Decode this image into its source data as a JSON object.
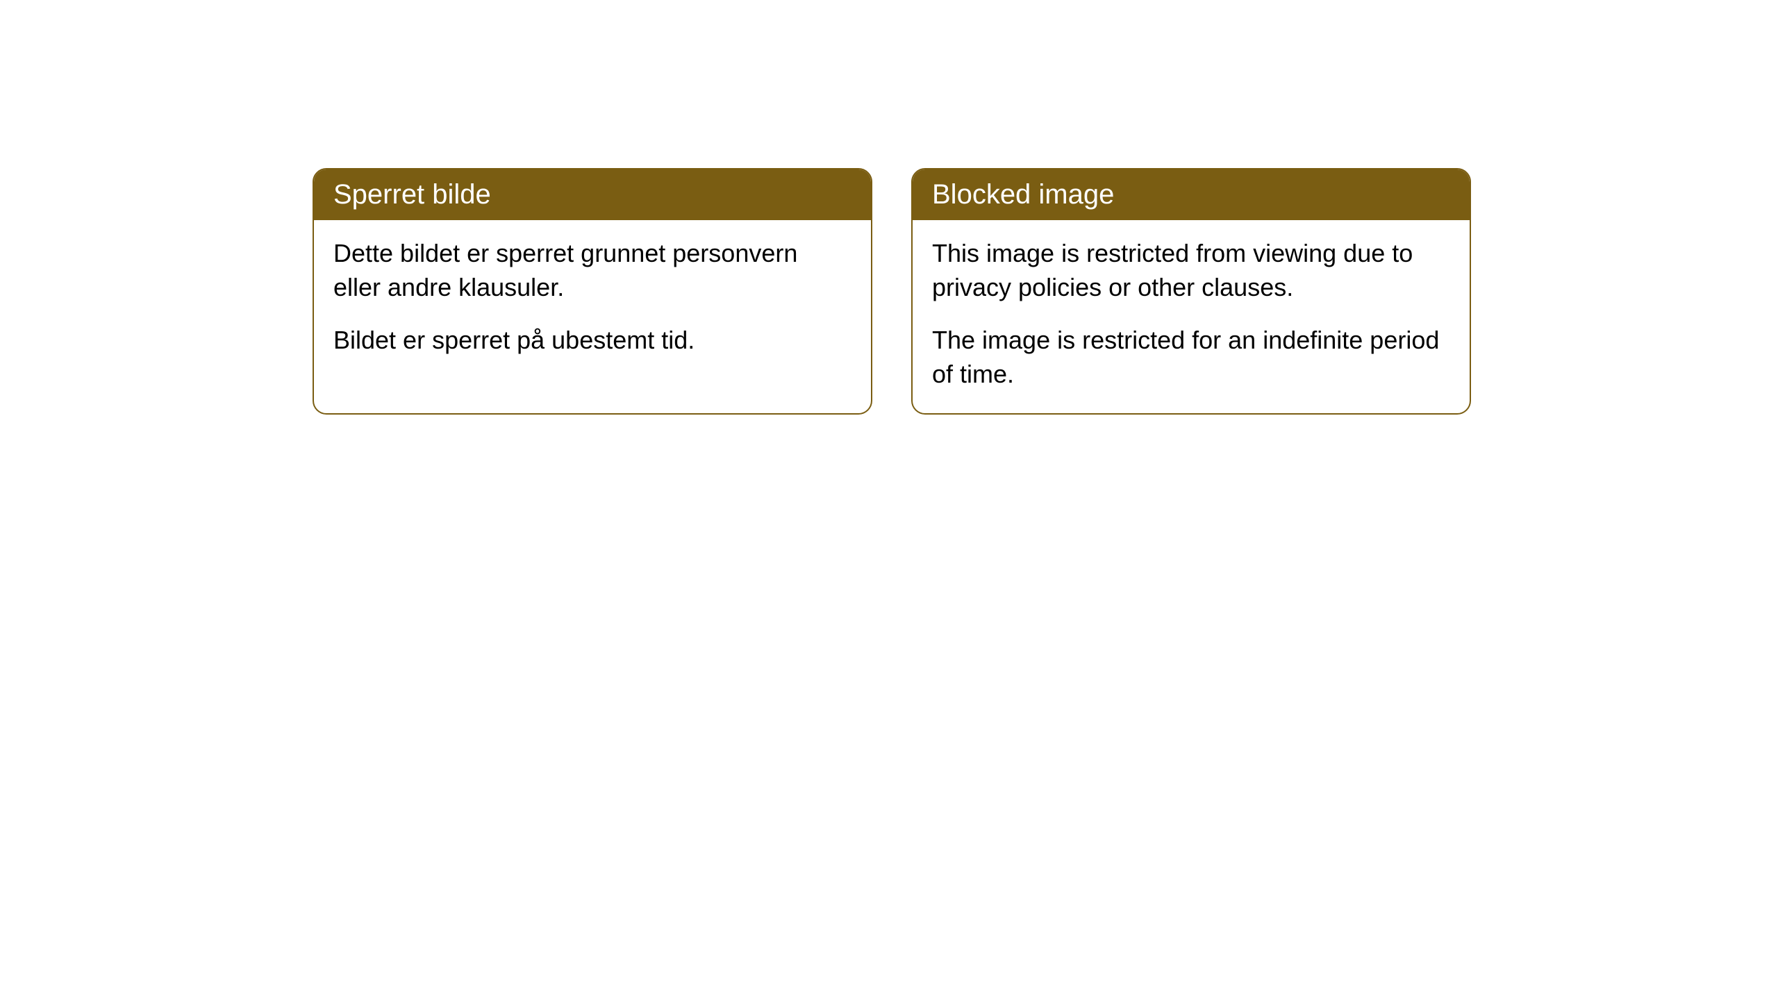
{
  "cards": [
    {
      "title": "Sperret bilde",
      "paragraph1": "Dette bildet er sperret grunnet personvern eller andre klausuler.",
      "paragraph2": "Bildet er sperret på ubestemt tid."
    },
    {
      "title": "Blocked image",
      "paragraph1": "This image is restricted from viewing due to privacy policies or other clauses.",
      "paragraph2": "The image is restricted for an indefinite period of time."
    }
  ],
  "styling": {
    "header_background": "#7a5d12",
    "header_text_color": "#ffffff",
    "card_border_color": "#7a5d12",
    "card_background": "#ffffff",
    "body_text_color": "#000000",
    "page_background": "#ffffff",
    "border_radius": 20,
    "title_fontsize": 40,
    "body_fontsize": 36
  }
}
